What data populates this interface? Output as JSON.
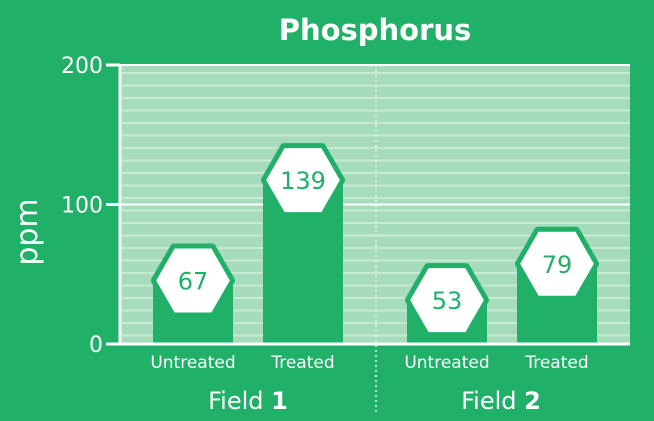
{
  "chart_data": {
    "type": "bar",
    "title": "Phosphorus",
    "ylabel": "ppm",
    "ylim": [
      0,
      200
    ],
    "yticks": [
      0,
      100,
      200
    ],
    "groups": [
      {
        "name": "Field",
        "number": "1",
        "bars": [
          {
            "label": "Untreated",
            "value": 67
          },
          {
            "label": "Treated",
            "value": 139
          }
        ]
      },
      {
        "name": "Field",
        "number": "2",
        "bars": [
          {
            "label": "Untreated",
            "value": 53
          },
          {
            "label": "Treated",
            "value": 79
          }
        ]
      }
    ],
    "grid": true,
    "colors": {
      "background": "#21b068",
      "plot_background": "#a6dcbb",
      "grid_line": "#c6ead4",
      "bar": "#21b068",
      "badge_fill": "#ffffff",
      "axis": "#ffffff"
    }
  }
}
